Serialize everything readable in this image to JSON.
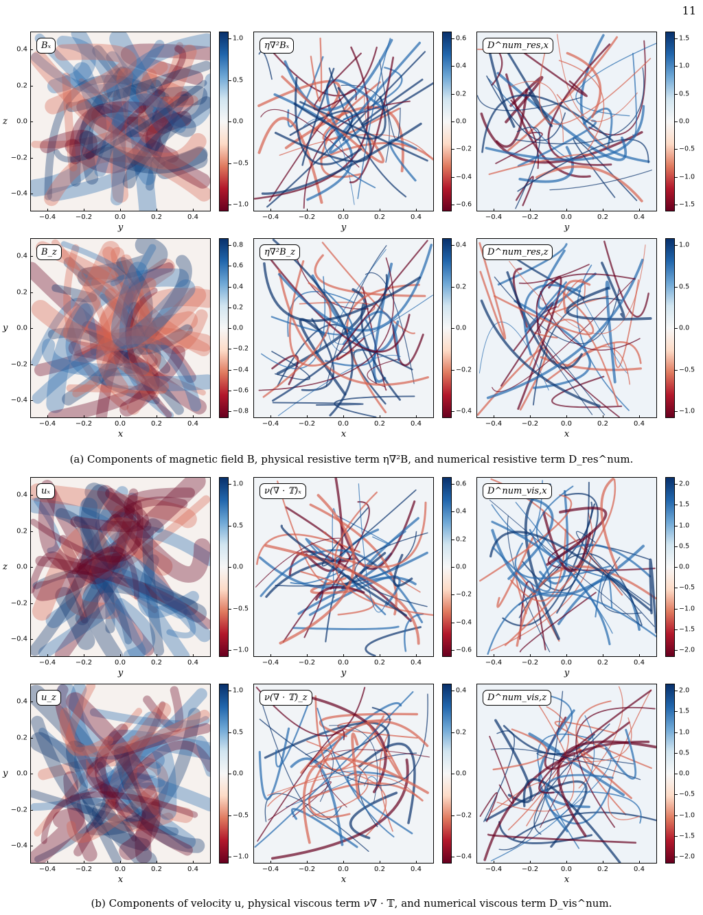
{
  "page_number": "11",
  "captions": {
    "a": "(a) Components of magnetic field B, physical resistive term η∇²B, and numerical resistive term D_res^num.",
    "b": "(b) Components of velocity u, physical viscous term ν∇ · 𝕋, and numerical viscous term D_vis^num."
  },
  "x_ticks": [
    "−0.4",
    "−0.2",
    "0.0",
    "0.2",
    "0.4"
  ],
  "y_ticks": [
    "0.4",
    "0.2",
    "0.0",
    "−0.2",
    "−0.4"
  ],
  "panels": [
    {
      "label": "Bₓ",
      "xlabel": "y",
      "ylabel": "z",
      "cbar": [
        "1.0",
        "0.5",
        "0.0",
        "−0.5",
        "−1.0"
      ],
      "seed": 1
    },
    {
      "label": "η∇²Bₓ",
      "xlabel": "y",
      "ylabel": "",
      "cbar": [
        "0.6",
        "0.4",
        "0.2",
        "0.0",
        "−0.2",
        "−0.4",
        "−0.6"
      ],
      "seed": 2
    },
    {
      "label": "D^num_res,x",
      "xlabel": "y",
      "ylabel": "",
      "cbar": [
        "1.5",
        "1.0",
        "0.5",
        "0.0",
        "−0.5",
        "−1.0",
        "−1.5"
      ],
      "seed": 3
    },
    {
      "label": "B_z",
      "xlabel": "x",
      "ylabel": "y",
      "cbar": [
        "0.8",
        "0.6",
        "0.4",
        "0.2",
        "0.0",
        "−0.2",
        "−0.4",
        "−0.6",
        "−0.8"
      ],
      "seed": 4
    },
    {
      "label": "η∇²B_z",
      "xlabel": "x",
      "ylabel": "",
      "cbar": [
        "0.4",
        "0.2",
        "0.0",
        "−0.2",
        "−0.4"
      ],
      "seed": 5
    },
    {
      "label": "D^num_res,z",
      "xlabel": "x",
      "ylabel": "",
      "cbar": [
        "1.0",
        "0.5",
        "0.0",
        "−0.5",
        "−1.0"
      ],
      "seed": 6
    },
    {
      "label": "uₓ",
      "xlabel": "y",
      "ylabel": "z",
      "cbar": [
        "1.0",
        "0.5",
        "0.0",
        "−0.5",
        "−1.0"
      ],
      "seed": 7
    },
    {
      "label": "ν(∇ · 𝕋)ₓ",
      "xlabel": "y",
      "ylabel": "",
      "cbar": [
        "0.6",
        "0.4",
        "0.2",
        "0.0",
        "−0.2",
        "−0.4",
        "−0.6"
      ],
      "seed": 8
    },
    {
      "label": "D^num_vis,x",
      "xlabel": "y",
      "ylabel": "",
      "cbar": [
        "2.0",
        "1.5",
        "1.0",
        "0.5",
        "0.0",
        "−0.5",
        "−1.0",
        "−1.5",
        "−2.0"
      ],
      "seed": 9
    },
    {
      "label": "u_z",
      "xlabel": "x",
      "ylabel": "y",
      "cbar": [
        "1.0",
        "0.5",
        "0.0",
        "−0.5",
        "−1.0"
      ],
      "seed": 10
    },
    {
      "label": "ν(∇ · 𝕋)_z",
      "xlabel": "x",
      "ylabel": "",
      "cbar": [
        "0.4",
        "0.2",
        "0.0",
        "−0.2",
        "−0.4"
      ],
      "seed": 11
    },
    {
      "label": "D^num_vis,z",
      "xlabel": "x",
      "ylabel": "",
      "cbar": [
        "2.0",
        "1.5",
        "1.0",
        "0.5",
        "0.0",
        "−0.5",
        "−1.0",
        "−1.5",
        "−2.0"
      ],
      "seed": 12
    }
  ],
  "colors": {
    "blue": "#08306b",
    "red": "#67001f",
    "white": "#f7f7f7"
  }
}
